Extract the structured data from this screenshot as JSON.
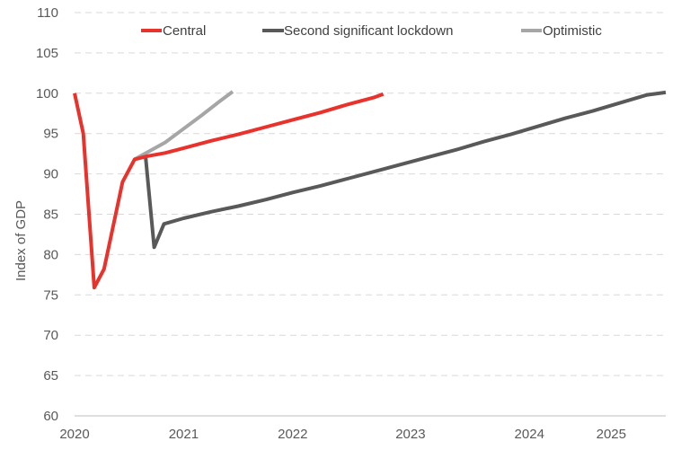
{
  "chart_data": {
    "type": "line",
    "ylabel": "Index of GDP",
    "ylim": [
      60,
      110
    ],
    "yticks": [
      60,
      65,
      70,
      75,
      80,
      85,
      90,
      95,
      100,
      105,
      110
    ],
    "xlim": [
      2020.0,
      2025.42
    ],
    "xticks": [
      {
        "label": "2020",
        "value": 2020.0
      },
      {
        "label": "2021",
        "value": 2021.0
      },
      {
        "label": "2022",
        "value": 2022.0
      },
      {
        "label": "2023",
        "value": 2023.08
      },
      {
        "label": "2024",
        "value": 2024.17
      },
      {
        "label": "2025",
        "value": 2024.92
      }
    ],
    "grid": true,
    "legend": "top",
    "series": [
      {
        "name": "Central",
        "color": "#e8322b",
        "points": [
          [
            2020.0,
            100
          ],
          [
            2020.08,
            95
          ],
          [
            2020.18,
            75.9
          ],
          [
            2020.27,
            78.2
          ],
          [
            2020.44,
            89
          ],
          [
            2020.55,
            91.8
          ],
          [
            2020.67,
            92.2
          ],
          [
            2020.83,
            92.6
          ],
          [
            2021.0,
            93.2
          ],
          [
            2021.25,
            94.1
          ],
          [
            2021.5,
            94.9
          ],
          [
            2021.75,
            95.8
          ],
          [
            2022.0,
            96.7
          ],
          [
            2022.25,
            97.6
          ],
          [
            2022.5,
            98.6
          ],
          [
            2022.75,
            99.5
          ],
          [
            2022.83,
            99.9
          ]
        ]
      },
      {
        "name": "Second significant lockdown",
        "color": "#595959",
        "points": [
          [
            2020.55,
            91.8
          ],
          [
            2020.65,
            92.3
          ],
          [
            2020.73,
            80.9
          ],
          [
            2020.82,
            83.8
          ],
          [
            2021.0,
            84.5
          ],
          [
            2021.25,
            85.3
          ],
          [
            2021.5,
            86
          ],
          [
            2021.75,
            86.8
          ],
          [
            2022.0,
            87.7
          ],
          [
            2022.25,
            88.5
          ],
          [
            2022.5,
            89.4
          ],
          [
            2022.75,
            90.3
          ],
          [
            2023.0,
            91.2
          ],
          [
            2023.25,
            92.1
          ],
          [
            2023.5,
            93
          ],
          [
            2023.75,
            94
          ],
          [
            2024.0,
            94.9
          ],
          [
            2024.25,
            95.9
          ],
          [
            2024.5,
            96.9
          ],
          [
            2024.75,
            97.8
          ],
          [
            2025.0,
            98.8
          ],
          [
            2025.25,
            99.8
          ],
          [
            2025.42,
            100.1
          ]
        ]
      },
      {
        "name": "Optimistic",
        "color": "#a6a6a6",
        "points": [
          [
            2020.55,
            91.8
          ],
          [
            2020.67,
            92.7
          ],
          [
            2020.83,
            93.9
          ],
          [
            2021.0,
            95.6
          ],
          [
            2021.17,
            97.3
          ],
          [
            2021.33,
            99
          ],
          [
            2021.45,
            100.2
          ]
        ]
      }
    ]
  }
}
